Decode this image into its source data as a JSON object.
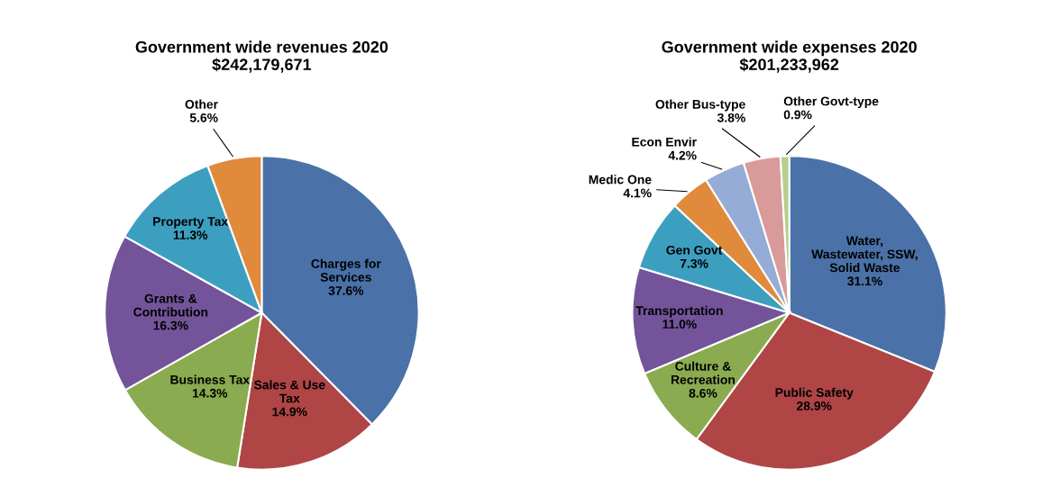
{
  "chart_data": [
    {
      "type": "pie",
      "title": "Government wide revenues 2020",
      "subtitle": "$242,179,671",
      "categories": [
        "Charges for\nServices",
        "Sales & Use\nTax",
        "Business Tax",
        "Grants &\nContribution",
        "Property Tax",
        "Other"
      ],
      "values": [
        37.6,
        14.9,
        14.3,
        16.3,
        11.3,
        5.6
      ],
      "value_labels": [
        "37.6%",
        "14.9%",
        "14.3%",
        "16.3%",
        "11.3%",
        "5.6%"
      ],
      "colors": [
        "#4a72a8",
        "#b04545",
        "#8aab4f",
        "#73549a",
        "#3d9fc0",
        "#e08a3c"
      ]
    },
    {
      "type": "pie",
      "title": "Government wide expenses 2020",
      "subtitle": "$201,233,962",
      "categories": [
        "Water,\nWastewater, SSW,\nSolid Waste",
        "Public Safety",
        "Culture &\nRecreation",
        "Transportation",
        "Gen Govt",
        "Medic One",
        "Econ Envir",
        "Other Bus-type",
        "Other Govt-type"
      ],
      "values": [
        31.1,
        28.9,
        8.6,
        11.0,
        7.3,
        4.1,
        4.2,
        3.8,
        0.9
      ],
      "value_labels": [
        "31.1%",
        "28.9%",
        "8.6%",
        "11.0%",
        "7.3%",
        "4.1%",
        "4.2%",
        "3.8%",
        "0.9%"
      ],
      "colors": [
        "#4a72a8",
        "#b04545",
        "#8aab4f",
        "#73549a",
        "#3d9fc0",
        "#e08a3c",
        "#95add6",
        "#d99a9a",
        "#b5cf8a"
      ]
    }
  ]
}
